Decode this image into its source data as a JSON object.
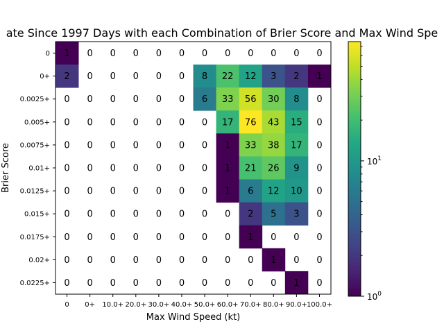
{
  "chart_data": {
    "type": "heatmap",
    "title": "ate Since 1997 Days with each Combination of Brier Score and Max Wind Spe",
    "xlabel": "Max Wind Speed (kt)",
    "ylabel": "Brier Score",
    "x_categories": [
      "0",
      "0+",
      "10.0+",
      "20.0+",
      "30.0+",
      "40.0+",
      "50.0+",
      "60.0+",
      "70.0+",
      "80.0+",
      "90.0+",
      "100.0+"
    ],
    "y_categories": [
      "0",
      "0+",
      "0.0025+",
      "0.005+",
      "0.0075+",
      "0.01+",
      "0.0125+",
      "0.015+",
      "0.0175+",
      "0.02+",
      "0.0225+"
    ],
    "values": [
      [
        1,
        0,
        0,
        0,
        0,
        0,
        0,
        0,
        0,
        0,
        0,
        0
      ],
      [
        2,
        0,
        0,
        0,
        0,
        0,
        8,
        22,
        12,
        3,
        2,
        1
      ],
      [
        0,
        0,
        0,
        0,
        0,
        0,
        6,
        33,
        56,
        30,
        8,
        0
      ],
      [
        0,
        0,
        0,
        0,
        0,
        0,
        0,
        17,
        76,
        43,
        15,
        0
      ],
      [
        0,
        0,
        0,
        0,
        0,
        0,
        0,
        1,
        33,
        38,
        17,
        0
      ],
      [
        0,
        0,
        0,
        0,
        0,
        0,
        0,
        1,
        21,
        26,
        9,
        0
      ],
      [
        0,
        0,
        0,
        0,
        0,
        0,
        0,
        1,
        6,
        12,
        10,
        0
      ],
      [
        0,
        0,
        0,
        0,
        0,
        0,
        0,
        0,
        2,
        5,
        3,
        0
      ],
      [
        0,
        0,
        0,
        0,
        0,
        0,
        0,
        0,
        1,
        0,
        0,
        0
      ],
      [
        0,
        0,
        0,
        0,
        0,
        0,
        0,
        0,
        0,
        1,
        0,
        0
      ],
      [
        0,
        0,
        0,
        0,
        0,
        0,
        0,
        0,
        0,
        0,
        1,
        0
      ]
    ],
    "colormap": "viridis",
    "color_scale": "log",
    "colorbar": {
      "range": [
        1,
        76
      ],
      "tick_labels": [
        "10^0",
        "10^1"
      ]
    }
  }
}
